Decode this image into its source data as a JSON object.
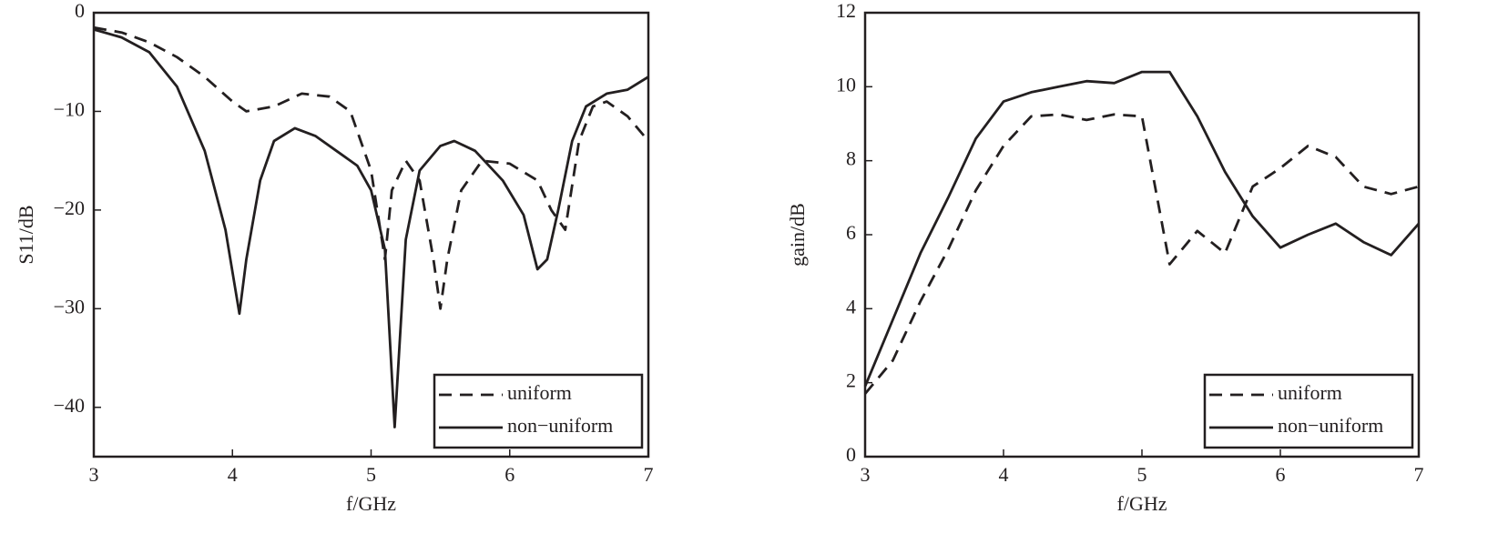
{
  "chart_data": [
    {
      "type": "line",
      "y_label": "S11/dB",
      "x_label": "f/GHz",
      "xlim": [
        3,
        7
      ],
      "xticks": [
        3,
        4,
        5,
        6,
        7
      ],
      "ylim": [
        -45,
        0
      ],
      "yticks": [
        0,
        {
          "value": -10,
          "label": "−10"
        },
        {
          "value": -20,
          "label": "−20"
        },
        {
          "value": -30,
          "label": "−30"
        },
        {
          "value": -40,
          "label": "−40"
        }
      ],
      "legend": "lower right",
      "series": [
        {
          "name": "uniform",
          "color": "#231f20",
          "dash": true,
          "x": [
            3.0,
            3.2,
            3.4,
            3.6,
            3.8,
            4.0,
            4.1,
            4.3,
            4.5,
            4.7,
            4.85,
            5.0,
            5.1,
            5.15,
            5.25,
            5.35,
            5.45,
            5.5,
            5.55,
            5.65,
            5.8,
            6.0,
            6.2,
            6.3,
            6.4,
            6.5,
            6.6,
            6.7,
            6.85,
            7.0
          ],
          "values": [
            -1.5,
            -2,
            -3,
            -4.5,
            -6.5,
            -9,
            -10,
            -9.5,
            -8.2,
            -8.5,
            -10,
            -16,
            -25,
            -18,
            -15,
            -17,
            -25,
            -30,
            -25,
            -18,
            -15,
            -15.3,
            -17,
            -20,
            -22,
            -13,
            -9.5,
            -9,
            -10.5,
            -13
          ]
        },
        {
          "name": "non−uniform",
          "color": "#231f20",
          "dash": false,
          "x": [
            3.0,
            3.2,
            3.4,
            3.6,
            3.8,
            3.95,
            4.05,
            4.1,
            4.2,
            4.3,
            4.45,
            4.6,
            4.75,
            4.9,
            5.0,
            5.1,
            5.17,
            5.25,
            5.35,
            5.5,
            5.6,
            5.75,
            5.95,
            6.1,
            6.2,
            6.27,
            6.35,
            6.45,
            6.55,
            6.7,
            6.85,
            7.0
          ],
          "values": [
            -1.7,
            -2.5,
            -4,
            -7.5,
            -14,
            -22,
            -30.5,
            -25,
            -17,
            -13,
            -11.7,
            -12.5,
            -14,
            -15.5,
            -18,
            -24,
            -42,
            -23,
            -16,
            -13.5,
            -13,
            -14,
            -17,
            -20.5,
            -26,
            -25,
            -20,
            -13,
            -9.5,
            -8.2,
            -7.8,
            -6.5
          ]
        }
      ]
    },
    {
      "type": "line",
      "y_label": "gain/dB",
      "x_label": "f/GHz",
      "xlim": [
        3,
        7
      ],
      "xticks": [
        3,
        4,
        5,
        6,
        7
      ],
      "ylim": [
        0,
        12
      ],
      "yticks": [
        0,
        2,
        4,
        6,
        8,
        10,
        12
      ],
      "legend": "lower right",
      "series": [
        {
          "name": "uniform",
          "color": "#231f20",
          "dash": true,
          "x": [
            3.0,
            3.2,
            3.4,
            3.6,
            3.8,
            4.0,
            4.2,
            4.4,
            4.6,
            4.8,
            5.0,
            5.2,
            5.4,
            5.6,
            5.8,
            6.0,
            6.2,
            6.4,
            6.6,
            6.8,
            7.0
          ],
          "values": [
            1.7,
            2.6,
            4.2,
            5.6,
            7.2,
            8.4,
            9.2,
            9.25,
            9.1,
            9.25,
            9.2,
            5.2,
            6.1,
            5.5,
            7.3,
            7.8,
            8.4,
            8.1,
            7.3,
            7.1,
            7.3
          ]
        },
        {
          "name": "non−uniform",
          "color": "#231f20",
          "dash": false,
          "x": [
            3.0,
            3.2,
            3.4,
            3.6,
            3.8,
            4.0,
            4.2,
            4.4,
            4.6,
            4.8,
            5.0,
            5.2,
            5.4,
            5.6,
            5.8,
            6.0,
            6.2,
            6.4,
            6.6,
            6.8,
            7.0
          ],
          "values": [
            1.9,
            3.7,
            5.5,
            7.0,
            8.6,
            9.6,
            9.85,
            10.0,
            10.15,
            10.1,
            10.4,
            10.4,
            9.2,
            7.7,
            6.5,
            5.65,
            6.0,
            6.3,
            5.8,
            5.45,
            6.3
          ]
        }
      ]
    }
  ]
}
